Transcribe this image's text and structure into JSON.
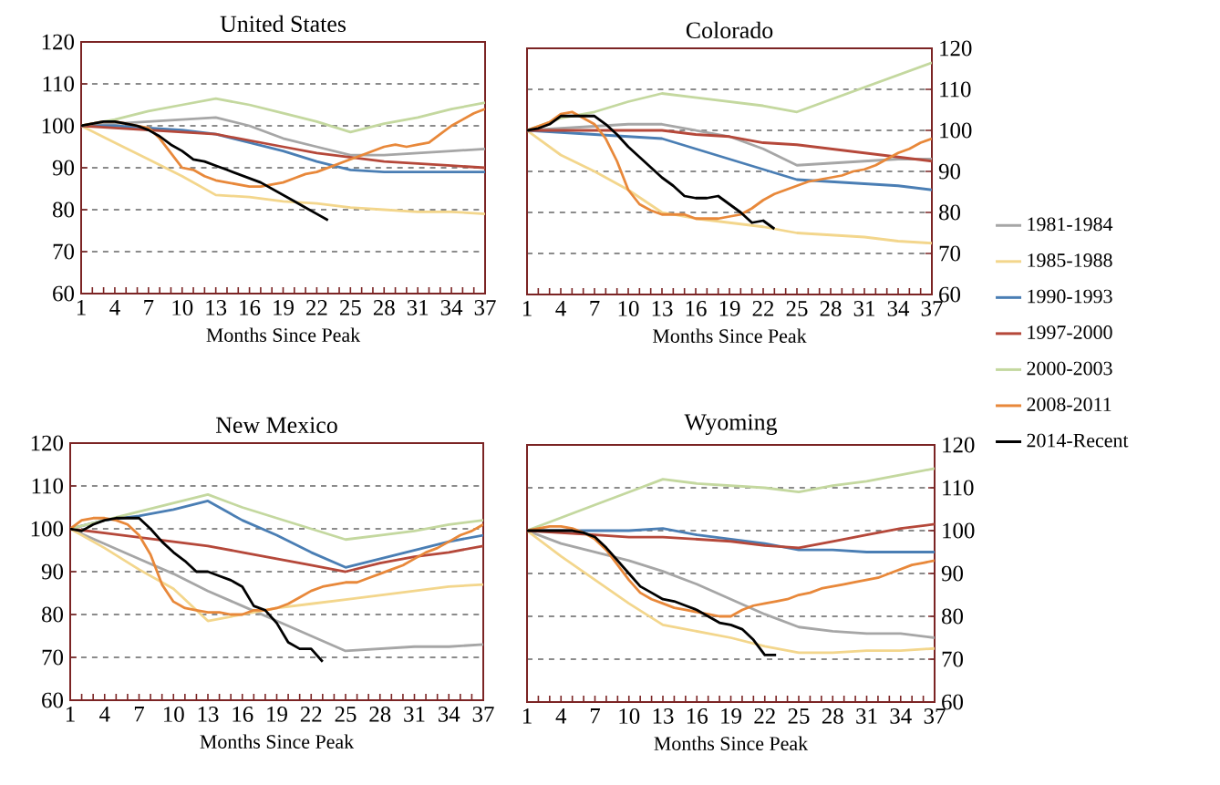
{
  "chart_data": [
    {
      "type": "line",
      "title": "United States",
      "xlabel": "Months Since Peak",
      "xlim": [
        1,
        37
      ],
      "ylim": [
        60,
        120
      ],
      "grid": "y",
      "xticks": [
        1,
        {
          "value": 2,
          "label": null
        },
        {
          "value": 3,
          "label": null
        },
        4,
        {
          "value": 5,
          "label": null
        },
        {
          "value": 6,
          "label": null
        },
        7,
        {
          "value": 8,
          "label": null
        },
        {
          "value": 9,
          "label": null
        },
        10,
        {
          "value": 11,
          "label": null
        },
        {
          "value": 12,
          "label": null
        },
        13,
        {
          "value": 14,
          "label": null
        },
        {
          "value": 15,
          "label": null
        },
        16,
        {
          "value": 17,
          "label": null
        },
        {
          "value": 18,
          "label": null
        },
        19,
        {
          "value": 20,
          "label": null
        },
        {
          "value": 21,
          "label": null
        },
        22,
        {
          "value": 23,
          "label": null
        },
        {
          "value": 24,
          "label": null
        },
        25,
        {
          "value": 26,
          "label": null
        },
        {
          "value": 27,
          "label": null
        },
        28,
        {
          "value": 29,
          "label": null
        },
        {
          "value": 30,
          "label": null
        },
        31,
        {
          "value": 32,
          "label": null
        },
        {
          "value": 33,
          "label": null
        },
        34,
        {
          "value": 35,
          "label": null
        },
        {
          "value": 36,
          "label": null
        },
        37
      ],
      "yticks": [
        60,
        70,
        80,
        90,
        100,
        110,
        120
      ],
      "series": [
        {
          "color": "#a6a6a6",
          "x": [
            1,
            4,
            7,
            10,
            13,
            16,
            19,
            22,
            25,
            28,
            31,
            34,
            37
          ],
          "values": [
            100,
            100.5,
            101,
            101.5,
            102,
            100,
            97,
            95,
            93,
            93,
            93.5,
            94,
            94.5
          ]
        },
        {
          "color": "#f3d68c",
          "x": [
            1,
            4,
            7,
            10,
            13,
            16,
            19,
            22,
            25,
            28,
            31,
            34,
            37
          ],
          "values": [
            100,
            96,
            92,
            88,
            83.5,
            83,
            82,
            81.5,
            80.5,
            80,
            79.5,
            79.5,
            79
          ]
        },
        {
          "color": "#4a7eb4",
          "x": [
            1,
            4,
            7,
            10,
            13,
            16,
            19,
            22,
            25,
            28,
            31,
            34,
            37
          ],
          "values": [
            100,
            100,
            99.5,
            99,
            98,
            96,
            94,
            91.5,
            89.5,
            89,
            89,
            89,
            89
          ]
        },
        {
          "color": "#b5483a",
          "x": [
            1,
            4,
            7,
            10,
            13,
            16,
            19,
            22,
            25,
            28,
            31,
            34,
            37
          ],
          "values": [
            100,
            99.5,
            99,
            98.5,
            98,
            96.5,
            95,
            93.5,
            92.5,
            91.5,
            91,
            90.5,
            90
          ]
        },
        {
          "color": "#c4d89f",
          "x": [
            1,
            4,
            7,
            10,
            13,
            16,
            19,
            22,
            25,
            28,
            31,
            34,
            37
          ],
          "values": [
            100,
            101.5,
            103.5,
            105,
            106.5,
            105,
            103,
            101,
            98.5,
            100.5,
            102,
            104,
            105.5
          ]
        },
        {
          "color": "#e8883a",
          "x": [
            1,
            2,
            3,
            4,
            5,
            6,
            7,
            8,
            9,
            10,
            11,
            12,
            13,
            14,
            15,
            16,
            17,
            18,
            19,
            20,
            21,
            22,
            23,
            24,
            25,
            26,
            27,
            28,
            29,
            30,
            31,
            32,
            33,
            34,
            35,
            36,
            37
          ],
          "values": [
            100,
            100.5,
            101,
            101,
            100.5,
            100,
            99.5,
            97,
            93.5,
            90,
            89.5,
            88,
            87,
            86.5,
            86,
            85.5,
            85.5,
            86,
            86.5,
            87.5,
            88.5,
            89,
            90,
            91,
            92,
            93,
            94,
            95,
            95.5,
            95,
            95.5,
            96,
            98,
            100,
            101.5,
            103,
            104
          ]
        },
        {
          "color": "#000000",
          "x": [
            1,
            2,
            3,
            4,
            5,
            6,
            7,
            8,
            9,
            10,
            11,
            12,
            13,
            14,
            15,
            16,
            17,
            18,
            19,
            20,
            21,
            22,
            23
          ],
          "values": [
            100,
            100.5,
            101,
            101,
            100.5,
            100,
            99,
            97.5,
            95.5,
            94,
            92,
            91.5,
            90.5,
            89.5,
            88.5,
            87.5,
            86.5,
            85,
            83.5,
            82,
            80.5,
            79,
            77.5
          ]
        }
      ]
    },
    {
      "type": "line",
      "title": "Colorado",
      "xlabel": "Months Since Peak",
      "xlim": [
        1,
        37
      ],
      "ylim": [
        60,
        120
      ],
      "grid": "y",
      "legend": "right",
      "xticks": [
        1,
        {
          "value": 2,
          "label": null
        },
        {
          "value": 3,
          "label": null
        },
        4,
        {
          "value": 5,
          "label": null
        },
        {
          "value": 6,
          "label": null
        },
        7,
        {
          "value": 8,
          "label": null
        },
        {
          "value": 9,
          "label": null
        },
        10,
        {
          "value": 11,
          "label": null
        },
        {
          "value": 12,
          "label": null
        },
        13,
        {
          "value": 14,
          "label": null
        },
        {
          "value": 15,
          "label": null
        },
        16,
        {
          "value": 17,
          "label": null
        },
        {
          "value": 18,
          "label": null
        },
        19,
        {
          "value": 20,
          "label": null
        },
        {
          "value": 21,
          "label": null
        },
        22,
        {
          "value": 23,
          "label": null
        },
        {
          "value": 24,
          "label": null
        },
        25,
        {
          "value": 26,
          "label": null
        },
        {
          "value": 27,
          "label": null
        },
        28,
        {
          "value": 29,
          "label": null
        },
        {
          "value": 30,
          "label": null
        },
        31,
        {
          "value": 32,
          "label": null
        },
        {
          "value": 33,
          "label": null
        },
        34,
        {
          "value": 35,
          "label": null
        },
        {
          "value": 36,
          "label": null
        },
        37
      ],
      "yticks": [
        60,
        70,
        80,
        90,
        100,
        110,
        120
      ],
      "series": [
        {
          "name": "1981-1984",
          "color": "#a6a6a6",
          "x": [
            1,
            4,
            7,
            10,
            13,
            16,
            19,
            22,
            25,
            28,
            31,
            34,
            37
          ],
          "values": [
            100,
            100.5,
            101,
            101.5,
            101.5,
            100,
            98.5,
            95.5,
            91.5,
            92,
            92.5,
            93,
            93
          ]
        },
        {
          "name": "1985-1988",
          "color": "#f3d68c",
          "x": [
            1,
            4,
            7,
            10,
            13,
            16,
            19,
            22,
            25,
            28,
            31,
            34,
            37
          ],
          "values": [
            100,
            94,
            90,
            85.5,
            80,
            78.5,
            77.5,
            76.5,
            75,
            74.5,
            74,
            73,
            72.5
          ]
        },
        {
          "name": "1990-1993",
          "color": "#4a7eb4",
          "x": [
            1,
            4,
            7,
            10,
            13,
            16,
            19,
            22,
            25,
            28,
            31,
            34,
            37
          ],
          "values": [
            100,
            99.5,
            99,
            98.5,
            98,
            95.5,
            93,
            90.5,
            88,
            87.5,
            87,
            86.5,
            85.5
          ]
        },
        {
          "name": "1997-2000",
          "color": "#b5483a",
          "x": [
            1,
            4,
            7,
            10,
            13,
            16,
            19,
            22,
            25,
            28,
            31,
            34,
            37
          ],
          "values": [
            100,
            100,
            100,
            100,
            100,
            99,
            98.5,
            97,
            96.5,
            95.5,
            94.5,
            93.5,
            92.5
          ]
        },
        {
          "name": "2000-2003",
          "color": "#c4d89f",
          "x": [
            1,
            4,
            7,
            10,
            13,
            16,
            19,
            22,
            25,
            28,
            31,
            34,
            37
          ],
          "values": [
            100,
            103,
            104.5,
            107,
            109,
            108,
            107,
            106,
            104.5,
            107.5,
            110.5,
            113.5,
            116.5
          ]
        },
        {
          "name": "2008-2011",
          "color": "#e8883a",
          "x": [
            1,
            2,
            3,
            4,
            5,
            6,
            7,
            8,
            9,
            10,
            11,
            12,
            13,
            14,
            15,
            16,
            17,
            18,
            19,
            20,
            21,
            22,
            23,
            24,
            25,
            26,
            27,
            28,
            29,
            30,
            31,
            32,
            33,
            34,
            35,
            36,
            37
          ],
          "values": [
            100,
            101,
            102,
            104,
            104.5,
            103,
            101.5,
            98,
            92.5,
            85.5,
            82,
            80.5,
            79.5,
            79.5,
            79.5,
            78.5,
            78.5,
            78.5,
            79,
            79.5,
            81,
            83,
            84.5,
            85.5,
            86.5,
            87.5,
            88,
            88.5,
            89,
            90,
            90.5,
            91.5,
            93,
            94.5,
            95.5,
            97,
            98
          ]
        },
        {
          "name": "2014-Recent",
          "color": "#000000",
          "x": [
            1,
            2,
            3,
            4,
            5,
            6,
            7,
            8,
            9,
            10,
            11,
            12,
            13,
            14,
            15,
            16,
            17,
            18,
            19,
            20,
            21,
            22,
            23
          ],
          "values": [
            100,
            100.5,
            101.5,
            103.5,
            103.5,
            103.5,
            103.5,
            101.5,
            99,
            96,
            93.5,
            91,
            88.5,
            86.5,
            84,
            83.5,
            83.5,
            84,
            82,
            80,
            77.5,
            78,
            76
          ]
        }
      ]
    },
    {
      "type": "line",
      "title": "New Mexico",
      "xlabel": "Months Since Peak",
      "xlim": [
        1,
        37
      ],
      "ylim": [
        60,
        120
      ],
      "grid": "y",
      "xticks": [
        1,
        {
          "value": 2,
          "label": null
        },
        {
          "value": 3,
          "label": null
        },
        4,
        {
          "value": 5,
          "label": null
        },
        {
          "value": 6,
          "label": null
        },
        7,
        {
          "value": 8,
          "label": null
        },
        {
          "value": 9,
          "label": null
        },
        10,
        {
          "value": 11,
          "label": null
        },
        {
          "value": 12,
          "label": null
        },
        13,
        {
          "value": 14,
          "label": null
        },
        {
          "value": 15,
          "label": null
        },
        16,
        {
          "value": 17,
          "label": null
        },
        {
          "value": 18,
          "label": null
        },
        19,
        {
          "value": 20,
          "label": null
        },
        {
          "value": 21,
          "label": null
        },
        22,
        {
          "value": 23,
          "label": null
        },
        {
          "value": 24,
          "label": null
        },
        25,
        {
          "value": 26,
          "label": null
        },
        {
          "value": 27,
          "label": null
        },
        28,
        {
          "value": 29,
          "label": null
        },
        {
          "value": 30,
          "label": null
        },
        31,
        {
          "value": 32,
          "label": null
        },
        {
          "value": 33,
          "label": null
        },
        34,
        {
          "value": 35,
          "label": null
        },
        {
          "value": 36,
          "label": null
        },
        37
      ],
      "yticks": [
        60,
        70,
        80,
        90,
        100,
        110,
        120
      ],
      "series": [
        {
          "color": "#a6a6a6",
          "x": [
            1,
            4,
            7,
            10,
            13,
            16,
            19,
            22,
            25,
            28,
            31,
            34,
            37
          ],
          "values": [
            100,
            96.5,
            93,
            89.5,
            85.5,
            82,
            78.5,
            75,
            71.5,
            72,
            72.5,
            72.5,
            73
          ]
        },
        {
          "color": "#f3d68c",
          "x": [
            1,
            4,
            7,
            10,
            13,
            16,
            19,
            22,
            25,
            28,
            31,
            34,
            37
          ],
          "values": [
            100,
            95.5,
            90.5,
            86,
            78.5,
            80,
            81.5,
            82.5,
            83.5,
            84.5,
            85.5,
            86.5,
            87
          ]
        },
        {
          "color": "#4a7eb4",
          "x": [
            1,
            4,
            7,
            10,
            13,
            16,
            19,
            22,
            25,
            28,
            31,
            34,
            37
          ],
          "values": [
            100,
            102,
            103,
            104.5,
            106.5,
            102,
            98.5,
            94.5,
            91,
            93,
            95,
            97,
            98.5
          ]
        },
        {
          "color": "#b5483a",
          "x": [
            1,
            4,
            7,
            10,
            13,
            16,
            19,
            22,
            25,
            28,
            31,
            34,
            37
          ],
          "values": [
            100,
            99,
            98,
            97,
            96,
            94.5,
            93,
            91.5,
            90,
            92,
            93.5,
            94.5,
            96
          ]
        },
        {
          "color": "#c4d89f",
          "x": [
            1,
            4,
            7,
            10,
            13,
            16,
            19,
            22,
            25,
            28,
            31,
            34,
            37
          ],
          "values": [
            100,
            102,
            104,
            106,
            108,
            105,
            102.5,
            100,
            97.5,
            98.5,
            99.5,
            101,
            102
          ]
        },
        {
          "color": "#e8883a",
          "x": [
            1,
            2,
            3,
            4,
            5,
            6,
            7,
            8,
            9,
            10,
            11,
            12,
            13,
            14,
            15,
            16,
            17,
            18,
            19,
            20,
            21,
            22,
            23,
            24,
            25,
            26,
            27,
            28,
            29,
            30,
            31,
            32,
            33,
            34,
            35,
            36,
            37
          ],
          "values": [
            100,
            102,
            102.5,
            102.5,
            102,
            101,
            98.5,
            94,
            87,
            83,
            81.5,
            81,
            80.5,
            80.5,
            80,
            80,
            81,
            81,
            81.5,
            82.5,
            84,
            85.5,
            86.5,
            87,
            87.5,
            87.5,
            88.5,
            89.5,
            90.5,
            91.5,
            93,
            94.5,
            95.5,
            97,
            98.5,
            99.5,
            101
          ]
        },
        {
          "color": "#000000",
          "x": [
            1,
            2,
            3,
            4,
            5,
            6,
            7,
            8,
            9,
            10,
            11,
            12,
            13,
            14,
            15,
            16,
            17,
            18,
            19,
            20,
            21,
            22,
            23
          ],
          "values": [
            100,
            99.5,
            101,
            102,
            102.5,
            102.5,
            102.5,
            100,
            97,
            94.5,
            92.5,
            90,
            90,
            89,
            88,
            86.5,
            82,
            81,
            78,
            73.5,
            72,
            72,
            69
          ]
        }
      ]
    },
    {
      "type": "line",
      "title": "Wyoming",
      "xlabel": "Months Since Peak",
      "xlim": [
        1,
        37
      ],
      "ylim": [
        60,
        120
      ],
      "grid": "y",
      "xticks": [
        1,
        {
          "value": 2,
          "label": null
        },
        {
          "value": 3,
          "label": null
        },
        4,
        {
          "value": 5,
          "label": null
        },
        {
          "value": 6,
          "label": null
        },
        7,
        {
          "value": 8,
          "label": null
        },
        {
          "value": 9,
          "label": null
        },
        10,
        {
          "value": 11,
          "label": null
        },
        {
          "value": 12,
          "label": null
        },
        13,
        {
          "value": 14,
          "label": null
        },
        {
          "value": 15,
          "label": null
        },
        16,
        {
          "value": 17,
          "label": null
        },
        {
          "value": 18,
          "label": null
        },
        19,
        {
          "value": 20,
          "label": null
        },
        {
          "value": 21,
          "label": null
        },
        22,
        {
          "value": 23,
          "label": null
        },
        {
          "value": 24,
          "label": null
        },
        25,
        {
          "value": 26,
          "label": null
        },
        {
          "value": 27,
          "label": null
        },
        28,
        {
          "value": 29,
          "label": null
        },
        {
          "value": 30,
          "label": null
        },
        31,
        {
          "value": 32,
          "label": null
        },
        {
          "value": 33,
          "label": null
        },
        34,
        {
          "value": 35,
          "label": null
        },
        {
          "value": 36,
          "label": null
        },
        37
      ],
      "yticks": [
        60,
        70,
        80,
        90,
        100,
        110,
        120
      ],
      "series": [
        {
          "color": "#a6a6a6",
          "x": [
            1,
            4,
            7,
            10,
            13,
            16,
            19,
            22,
            25,
            28,
            31,
            34,
            37
          ],
          "values": [
            100,
            97,
            95,
            93,
            90.5,
            87.5,
            84,
            80.5,
            77.5,
            76.5,
            76,
            76,
            75
          ]
        },
        {
          "color": "#f3d68c",
          "x": [
            1,
            4,
            7,
            10,
            13,
            16,
            19,
            22,
            25,
            28,
            31,
            34,
            37
          ],
          "values": [
            100,
            94,
            88.5,
            83,
            78,
            76.5,
            75,
            73,
            71.5,
            71.5,
            72,
            72,
            72.5
          ]
        },
        {
          "color": "#4a7eb4",
          "x": [
            1,
            4,
            7,
            10,
            13,
            16,
            19,
            22,
            25,
            28,
            31,
            34,
            37
          ],
          "values": [
            100,
            100,
            100,
            100,
            100.5,
            99,
            98,
            97,
            95.5,
            95.5,
            95,
            95,
            95
          ]
        },
        {
          "color": "#b5483a",
          "x": [
            1,
            4,
            7,
            10,
            13,
            16,
            19,
            22,
            25,
            28,
            31,
            34,
            37
          ],
          "values": [
            100,
            99.5,
            99,
            98.5,
            98.5,
            98,
            97.5,
            96.5,
            96,
            97.5,
            99,
            100.5,
            101.5
          ]
        },
        {
          "color": "#c4d89f",
          "x": [
            1,
            4,
            7,
            10,
            13,
            16,
            19,
            22,
            25,
            28,
            31,
            34,
            37
          ],
          "values": [
            100,
            103,
            106,
            109,
            112,
            111,
            110.5,
            110,
            109,
            110.5,
            111.5,
            113,
            114.5
          ]
        },
        {
          "color": "#e8883a",
          "x": [
            1,
            2,
            3,
            4,
            5,
            6,
            7,
            8,
            9,
            10,
            11,
            12,
            13,
            14,
            15,
            16,
            17,
            18,
            19,
            20,
            21,
            22,
            23,
            24,
            25,
            26,
            27,
            28,
            29,
            30,
            31,
            32,
            33,
            34,
            35,
            36,
            37
          ],
          "values": [
            100,
            100.5,
            101,
            101,
            100.5,
            99.5,
            98,
            95.5,
            92,
            88.5,
            85.5,
            84,
            83,
            82,
            81.5,
            81,
            80.5,
            80,
            80,
            81.5,
            82.5,
            83,
            83.5,
            84,
            85,
            85.5,
            86.5,
            87,
            87.5,
            88,
            88.5,
            89,
            90,
            91,
            92,
            92.5,
            93
          ]
        },
        {
          "color": "#000000",
          "x": [
            1,
            2,
            3,
            4,
            5,
            6,
            7,
            8,
            9,
            10,
            11,
            12,
            13,
            14,
            15,
            16,
            17,
            18,
            19,
            20,
            21,
            22,
            23
          ],
          "values": [
            100,
            100,
            100,
            100,
            100,
            99.5,
            98.5,
            96,
            93,
            90,
            87,
            85.5,
            84,
            83.5,
            82.5,
            81.5,
            80,
            78.5,
            78,
            77,
            74.5,
            71,
            71
          ]
        }
      ]
    }
  ]
}
